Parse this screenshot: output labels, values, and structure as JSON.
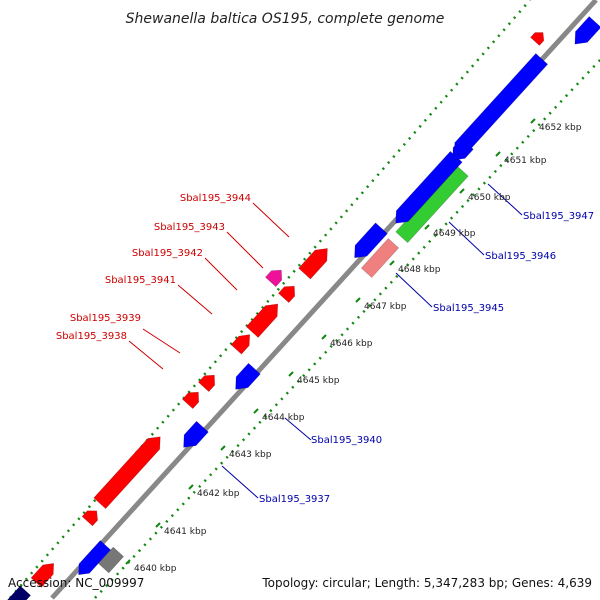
{
  "title": "Shewanella baltica OS195, complete genome",
  "footer": {
    "accession": "Accession: NC_009997",
    "summary": "Topology: circular; Length: 5,347,283 bp; Genes: 4,639"
  },
  "colors": {
    "forward": "#ff0000",
    "reverse": "#0000ff",
    "magenta": "#ee1199",
    "green": "#33cc33",
    "salmon": "#f08080",
    "gray": "#777777",
    "navy": "#000066",
    "backbone": "#888888",
    "dotted": "#118811",
    "label_forward": "#cc0000",
    "label_reverse": "#0000aa"
  },
  "scale_labels": [
    "4640 kbp",
    "4641 kbp",
    "4642 kbp",
    "4643 kbp",
    "4644 kbp",
    "4645 kbp",
    "4646 kbp",
    "4647 kbp",
    "4648 kbp",
    "4649 kbp",
    "4650 kbp",
    "4651 kbp",
    "4652 kbp"
  ],
  "gene_labels_forward": [
    "Sbal195_3938",
    "Sbal195_3939",
    "Sbal195_3941",
    "Sbal195_3942",
    "Sbal195_3943",
    "Sbal195_3944"
  ],
  "gene_labels_reverse": [
    "Sbal195_3937",
    "Sbal195_3940",
    "Sbal195_3945",
    "Sbal195_3946",
    "Sbal195_3947"
  ]
}
